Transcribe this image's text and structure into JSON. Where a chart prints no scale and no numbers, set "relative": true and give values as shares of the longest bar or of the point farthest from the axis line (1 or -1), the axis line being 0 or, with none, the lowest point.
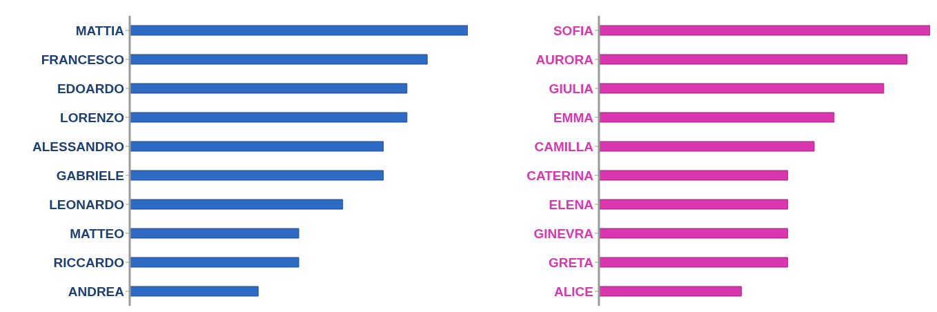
{
  "chart_data": [
    {
      "type": "bar",
      "orientation": "horizontal",
      "relative": true,
      "categories": [
        "MATTIA",
        "FRANCESCO",
        "EDOARDO",
        "LORENZO",
        "ALESSANDRO",
        "GABRIELE",
        "LEONARDO",
        "MATTEO",
        "RICCARDO",
        "ANDREA"
      ],
      "series": [
        {
          "color": "#2e6bc4",
          "values": [
            1,
            0.88,
            0.82,
            0.82,
            0.75,
            0.75,
            0.63,
            0.5,
            0.5,
            0.38
          ]
        }
      ],
      "legend": false,
      "grid": false
    },
    {
      "type": "bar",
      "orientation": "horizontal",
      "relative": true,
      "categories": [
        "SOFIA",
        "AURORA",
        "GIULIA",
        "EMMA",
        "CAMILLA",
        "CATERINA",
        "ELENA",
        "GINEVRA",
        "GRETA",
        "ALICE"
      ],
      "series": [
        {
          "color": "#d936b0",
          "values": [
            1,
            0.93,
            0.86,
            0.71,
            0.65,
            0.57,
            0.57,
            0.57,
            0.57,
            0.43
          ]
        }
      ],
      "legend": false,
      "grid": false
    }
  ]
}
